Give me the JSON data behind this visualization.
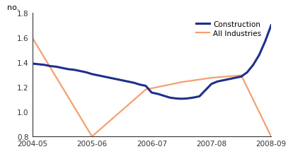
{
  "x_labels": [
    "2004-05",
    "2005-06",
    "2006-07",
    "2007-08",
    "2008-09"
  ],
  "x_positions": [
    0,
    1,
    2,
    3,
    4
  ],
  "construction_x": [
    0,
    0.1,
    0.2,
    0.3,
    0.4,
    0.5,
    0.6,
    0.7,
    0.8,
    0.9,
    1.0,
    1.1,
    1.2,
    1.3,
    1.4,
    1.5,
    1.6,
    1.7,
    1.8,
    1.9,
    2.0,
    2.1,
    2.2,
    2.3,
    2.4,
    2.5,
    2.6,
    2.7,
    2.8,
    2.9,
    3.0,
    3.1,
    3.2,
    3.3,
    3.4,
    3.5,
    3.6,
    3.7,
    3.8,
    3.9,
    4.0
  ],
  "construction_y": [
    1.39,
    1.385,
    1.38,
    1.37,
    1.365,
    1.355,
    1.345,
    1.34,
    1.33,
    1.32,
    1.305,
    1.295,
    1.285,
    1.275,
    1.265,
    1.255,
    1.245,
    1.235,
    1.22,
    1.21,
    1.155,
    1.145,
    1.13,
    1.115,
    1.108,
    1.105,
    1.108,
    1.115,
    1.125,
    1.175,
    1.225,
    1.245,
    1.255,
    1.265,
    1.275,
    1.285,
    1.32,
    1.38,
    1.46,
    1.57,
    1.7
  ],
  "all_industries_x": [
    0,
    1,
    1.9,
    2.5,
    3.0,
    3.5,
    4.0
  ],
  "all_industries_y": [
    1.6,
    0.8,
    1.18,
    1.24,
    1.275,
    1.295,
    0.8
  ],
  "construction_color": "#1f2f8c",
  "all_industries_color": "#f4a070",
  "ylabel": "no.",
  "ylim": [
    0.8,
    1.8
  ],
  "yticks": [
    0.8,
    1.0,
    1.2,
    1.4,
    1.6,
    1.8
  ],
  "legend_construction": "Construction",
  "legend_all": "All Industries",
  "bg_color": "#ffffff",
  "construction_linewidth": 2.2,
  "all_linewidth": 1.6
}
